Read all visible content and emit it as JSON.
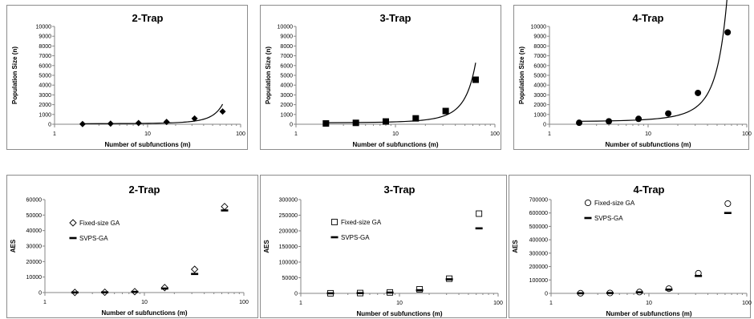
{
  "chart_data": [
    {
      "type": "scatter",
      "title": "2-Trap",
      "xlabel": "Number of subfunctions (m)",
      "ylabel": "Population Size (n)",
      "xscale": "log",
      "xlim": [
        1,
        100
      ],
      "ylim": [
        0,
        10000
      ],
      "yticks": [
        0,
        1000,
        2000,
        3000,
        4000,
        5000,
        6000,
        7000,
        8000,
        9000,
        10000
      ],
      "xticks": [
        1,
        10,
        100
      ],
      "grid": false,
      "trendline": "exponential",
      "series": [
        {
          "marker": "diamond-filled",
          "x": [
            2,
            4,
            8,
            16,
            32,
            64
          ],
          "y": [
            20,
            60,
            120,
            240,
            580,
            1300
          ]
        }
      ]
    },
    {
      "type": "scatter",
      "title": "3-Trap",
      "xlabel": "Number of subfunctions (m)",
      "ylabel": "Population Size (n)",
      "xscale": "log",
      "xlim": [
        1,
        100
      ],
      "ylim": [
        0,
        10000
      ],
      "yticks": [
        0,
        1000,
        2000,
        3000,
        4000,
        5000,
        6000,
        7000,
        8000,
        9000,
        10000
      ],
      "xticks": [
        1,
        10,
        100
      ],
      "grid": false,
      "trendline": "exponential",
      "series": [
        {
          "marker": "square-filled",
          "x": [
            2,
            4,
            8,
            16,
            32,
            64
          ],
          "y": [
            80,
            140,
            280,
            600,
            1350,
            4550
          ]
        }
      ]
    },
    {
      "type": "scatter",
      "title": "4-Trap",
      "xlabel": "Number of subfunctions (m)",
      "ylabel": "Population Size (n)",
      "xscale": "log",
      "xlim": [
        1,
        100
      ],
      "ylim": [
        0,
        10000
      ],
      "yticks": [
        0,
        1000,
        2000,
        3000,
        4000,
        5000,
        6000,
        7000,
        8000,
        9000,
        10000
      ],
      "xticks": [
        1,
        10,
        100
      ],
      "grid": false,
      "trendline": "exponential",
      "series": [
        {
          "marker": "circle-filled",
          "x": [
            2,
            4,
            8,
            16,
            32,
            64
          ],
          "y": [
            150,
            300,
            550,
            1100,
            3200,
            9400
          ]
        }
      ]
    },
    {
      "type": "scatter",
      "title": "2-Trap",
      "xlabel": "Number of subfunctions (m)",
      "ylabel": "AES",
      "xscale": "log",
      "xlim": [
        1,
        100
      ],
      "ylim": [
        0,
        60000
      ],
      "yticks": [
        0,
        10000,
        20000,
        30000,
        40000,
        50000,
        60000
      ],
      "xticks": [
        1,
        10,
        100
      ],
      "grid": false,
      "legend_position": "left",
      "series": [
        {
          "name": "Fixed-size GA",
          "marker": "diamond-open",
          "x": [
            2,
            4,
            8,
            16,
            32,
            64
          ],
          "y": [
            100,
            200,
            600,
            3200,
            15000,
            55500
          ]
        },
        {
          "name": "SVPS-GA",
          "marker": "dash",
          "x": [
            2,
            4,
            8,
            16,
            32,
            64
          ],
          "y": [
            60,
            150,
            450,
            2600,
            12000,
            53000
          ]
        }
      ]
    },
    {
      "type": "scatter",
      "title": "3-Trap",
      "xlabel": "Number of subfunctions (m)",
      "ylabel": "AES",
      "xscale": "log",
      "xlim": [
        1,
        100
      ],
      "ylim": [
        0,
        300000
      ],
      "yticks": [
        0,
        50000,
        100000,
        150000,
        200000,
        250000,
        300000
      ],
      "xticks": [
        1,
        10,
        100
      ],
      "grid": false,
      "legend_position": "left",
      "series": [
        {
          "name": "Fixed-size GA",
          "marker": "square-open",
          "x": [
            2,
            4,
            8,
            16,
            32,
            64
          ],
          "y": [
            300,
            1000,
            3000,
            13000,
            47000,
            255000
          ]
        },
        {
          "name": "SVPS-GA",
          "marker": "dash",
          "x": [
            2,
            4,
            8,
            16,
            32,
            64
          ],
          "y": [
            200,
            800,
            2500,
            10000,
            45000,
            208000
          ]
        }
      ]
    },
    {
      "type": "scatter",
      "title": "4-Trap",
      "xlabel": "Number of subfunctions (m)",
      "ylabel": "AES",
      "xscale": "log",
      "xlim": [
        1,
        100
      ],
      "ylim": [
        0,
        700000
      ],
      "yticks": [
        0,
        100000,
        200000,
        300000,
        400000,
        500000,
        600000,
        700000
      ],
      "xticks": [
        1,
        10,
        100
      ],
      "grid": false,
      "legend_position": "left",
      "series": [
        {
          "name": "Fixed-size GA",
          "marker": "circle-open",
          "x": [
            2,
            4,
            8,
            16,
            32,
            64
          ],
          "y": [
            1000,
            3000,
            10000,
            35000,
            150000,
            670000
          ]
        },
        {
          "name": "SVPS-GA",
          "marker": "dash",
          "x": [
            2,
            4,
            8,
            16,
            32,
            64
          ],
          "y": [
            800,
            2500,
            8000,
            28000,
            130000,
            600000
          ]
        }
      ]
    }
  ]
}
